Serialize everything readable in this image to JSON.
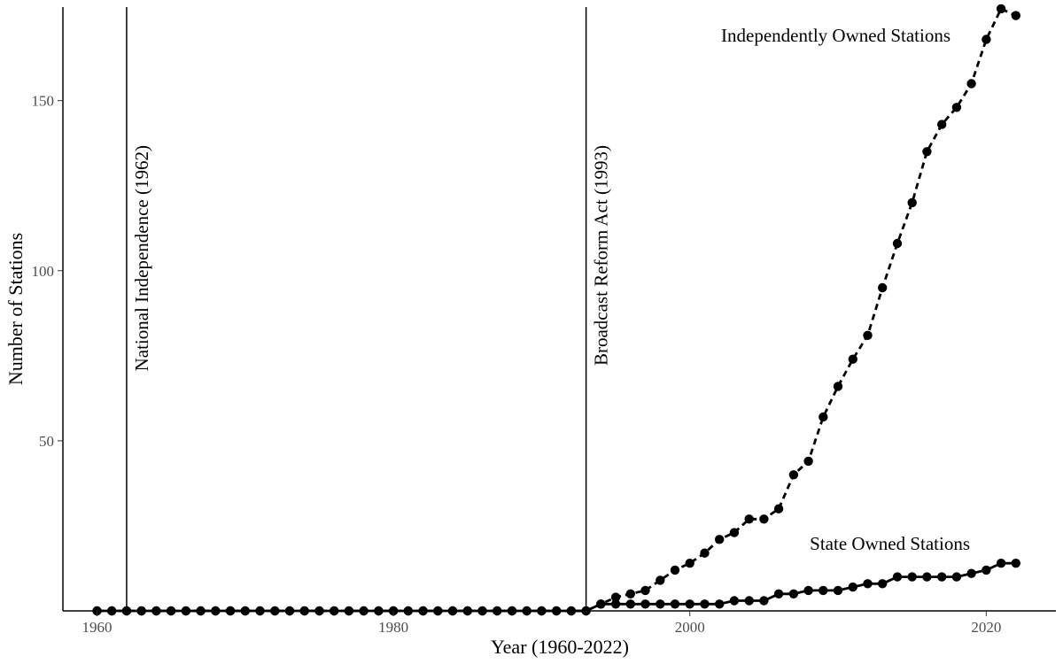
{
  "chart_data": {
    "type": "line",
    "title": "",
    "xlabel": "Year (1960-2022)",
    "ylabel": "Number of Stations",
    "xlim": [
      1957.7,
      2024.7
    ],
    "ylim": [
      0,
      177.5
    ],
    "xticks": [
      1960,
      1980,
      2000,
      2020
    ],
    "yticks": [
      50,
      100,
      150
    ],
    "grid": false,
    "legend": "none",
    "vlines": [
      {
        "x": 1962,
        "label": "National Independence (1962)"
      },
      {
        "x": 1993,
        "label": "Broadcast Reform Act (1993)"
      }
    ],
    "series": [
      {
        "name": "Independently Owned Stations",
        "style": "dashed",
        "x": [
          1960,
          1961,
          1962,
          1963,
          1964,
          1965,
          1966,
          1967,
          1968,
          1969,
          1970,
          1971,
          1972,
          1973,
          1974,
          1975,
          1976,
          1977,
          1978,
          1979,
          1980,
          1981,
          1982,
          1983,
          1984,
          1985,
          1986,
          1987,
          1988,
          1989,
          1990,
          1991,
          1992,
          1993,
          1994,
          1995,
          1996,
          1997,
          1998,
          1999,
          2000,
          2001,
          2002,
          2003,
          2004,
          2005,
          2006,
          2007,
          2008,
          2009,
          2010,
          2011,
          2012,
          2013,
          2014,
          2015,
          2016,
          2017,
          2018,
          2019,
          2020,
          2021,
          2022
        ],
        "values": [
          0,
          0,
          0,
          0,
          0,
          0,
          0,
          0,
          0,
          0,
          0,
          0,
          0,
          0,
          0,
          0,
          0,
          0,
          0,
          0,
          0,
          0,
          0,
          0,
          0,
          0,
          0,
          0,
          0,
          0,
          0,
          0,
          0,
          0,
          2,
          4,
          5,
          6,
          9,
          12,
          14,
          17,
          21,
          23,
          27,
          27,
          30,
          40,
          44,
          57,
          66,
          74,
          81,
          95,
          108,
          120,
          135,
          143,
          148,
          155,
          168,
          177,
          175
        ]
      },
      {
        "name": "State Owned Stations",
        "style": "solid",
        "x": [
          1960,
          1961,
          1962,
          1963,
          1964,
          1965,
          1966,
          1967,
          1968,
          1969,
          1970,
          1971,
          1972,
          1973,
          1974,
          1975,
          1976,
          1977,
          1978,
          1979,
          1980,
          1981,
          1982,
          1983,
          1984,
          1985,
          1986,
          1987,
          1988,
          1989,
          1990,
          1991,
          1992,
          1993,
          1994,
          1995,
          1996,
          1997,
          1998,
          1999,
          2000,
          2001,
          2002,
          2003,
          2004,
          2005,
          2006,
          2007,
          2008,
          2009,
          2010,
          2011,
          2012,
          2013,
          2014,
          2015,
          2016,
          2017,
          2018,
          2019,
          2020,
          2021,
          2022
        ],
        "values": [
          0,
          0,
          0,
          0,
          0,
          0,
          0,
          0,
          0,
          0,
          0,
          0,
          0,
          0,
          0,
          0,
          0,
          0,
          0,
          0,
          0,
          0,
          0,
          0,
          0,
          0,
          0,
          0,
          0,
          0,
          0,
          0,
          0,
          0,
          2,
          2,
          2,
          2,
          2,
          2,
          2,
          2,
          2,
          3,
          3,
          3,
          5,
          5,
          6,
          6,
          6,
          7,
          8,
          8,
          10,
          10,
          10,
          10,
          10,
          11,
          12,
          14,
          14
        ]
      }
    ]
  }
}
